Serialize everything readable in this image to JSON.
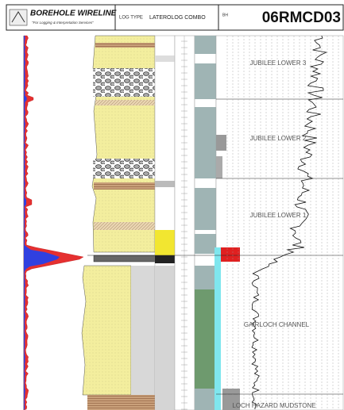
{
  "header": {
    "logo": "BOREHOLE WIRELINE",
    "tagline": "\"For Logging & Interpretation Services\"",
    "log_type_label": "LOG TYPE",
    "log_type": "LATEROLOG COMBO",
    "bh_label": "BH",
    "bh": "06RMCD03"
  },
  "zones": [
    "JUBILEE LOWER 3",
    "JUBILEE LOWER 2",
    "JUBILEE LOWER 1",
    "GAIRLOCH CHANNEL",
    "LOCH HAZARD MUDSTONE"
  ]
}
